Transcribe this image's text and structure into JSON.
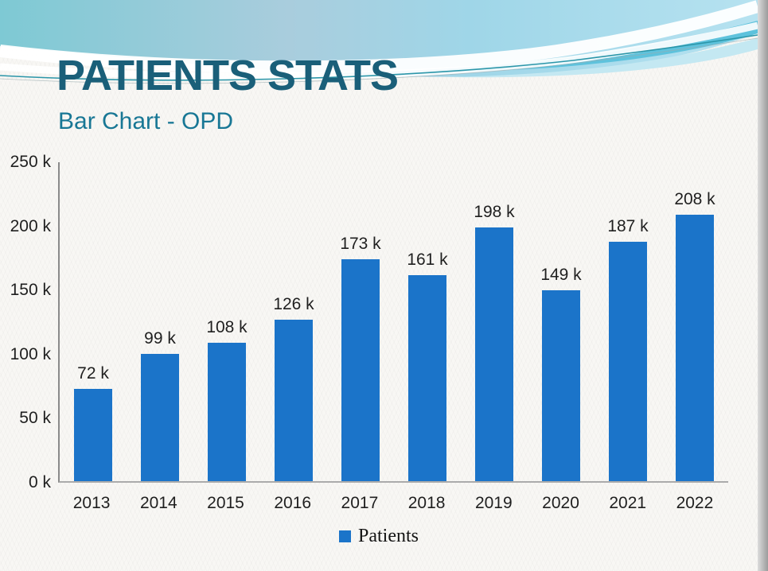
{
  "slide": {
    "title": "PATIENTS STATS",
    "subtitle": "Bar Chart - OPD"
  },
  "chart_data": {
    "type": "bar",
    "title": "PATIENTS STATS",
    "subtitle": "Bar Chart - OPD",
    "categories": [
      "2013",
      "2014",
      "2015",
      "2016",
      "2017",
      "2018",
      "2019",
      "2020",
      "2021",
      "2022"
    ],
    "series": [
      {
        "name": "Patients",
        "values": [
          72,
          99,
          108,
          126,
          173,
          161,
          198,
          149,
          187,
          208
        ]
      }
    ],
    "unit": "k",
    "value_labels": [
      "72 k",
      "99 k",
      "108 k",
      "126 k",
      "173 k",
      "161 k",
      "198 k",
      "149 k",
      "187 k",
      "208 k"
    ],
    "y_ticks": [
      "250 k",
      "200 k",
      "150 k",
      "100 k",
      "50 k",
      "0 k"
    ],
    "ylim": [
      0,
      250
    ],
    "grid": false,
    "legend_position": "bottom",
    "legend": {
      "label": "Patients"
    },
    "bar_color": "#1B74C9"
  },
  "colors": {
    "title": "#1A5F79",
    "subtitle": "#187795",
    "bar": "#1B74C9",
    "axis": "#9c9c9c",
    "background": "#f8f7f4"
  }
}
